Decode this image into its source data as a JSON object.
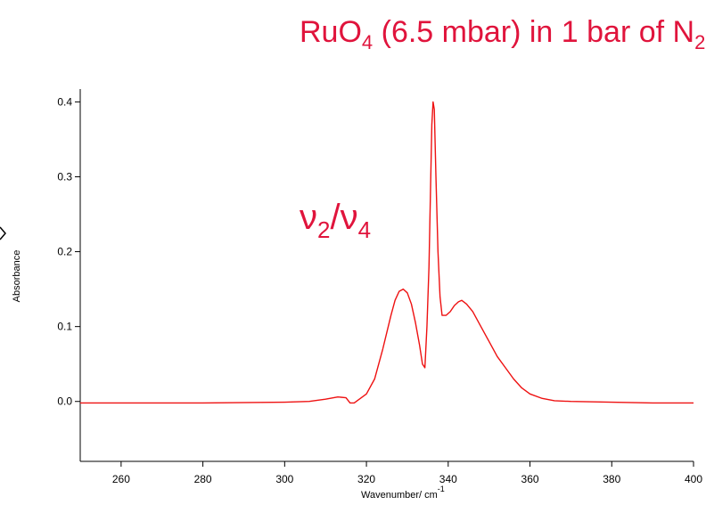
{
  "chart_data": {
    "type": "line",
    "title": {
      "base": "RuO",
      "sub1": "4",
      "mid": " (6.5 mbar) in 1 bar of N",
      "sub2": "2"
    },
    "annotation": {
      "nu1": "ν",
      "sub1": "2",
      "slash": "/ν",
      "sub2": "4"
    },
    "xlabel": "Wavenumber/ cm",
    "xlabel_sup": "-1",
    "ylabel": "Absorbance",
    "xlim": [
      250,
      400
    ],
    "ylim": [
      -0.08,
      0.41
    ],
    "xticks": [
      260,
      280,
      300,
      320,
      340,
      360,
      380,
      400
    ],
    "yticks": [
      0.0,
      0.1,
      0.2,
      0.3,
      0.4
    ],
    "ytick_labels": [
      "0.0",
      "0.1",
      "0.2",
      "0.3",
      "0.4"
    ],
    "grid": false,
    "colors": {
      "line": "#ee1111",
      "title": "#e0143c"
    },
    "series": [
      {
        "x": [
          250,
          260,
          280,
          300,
          306,
          310,
          313,
          315,
          316,
          317,
          320,
          322,
          324,
          326,
          327,
          328,
          329,
          330,
          331,
          332,
          333,
          333.7,
          334.3,
          334.8,
          335.3,
          335.7,
          336.0,
          336.3,
          336.6,
          337.0,
          337.5,
          338.0,
          338.5,
          339.5,
          340.5,
          341.5,
          342.5,
          343.3,
          344.5,
          346,
          348,
          350,
          352,
          354,
          356,
          358,
          360,
          363,
          366,
          370,
          380,
          390,
          400
        ],
        "y": [
          -0.002,
          -0.002,
          -0.002,
          -0.001,
          0.0,
          0.003,
          0.006,
          0.005,
          -0.002,
          -0.002,
          0.01,
          0.03,
          0.07,
          0.115,
          0.135,
          0.147,
          0.15,
          0.145,
          0.13,
          0.105,
          0.075,
          0.05,
          0.045,
          0.1,
          0.18,
          0.29,
          0.37,
          0.4,
          0.39,
          0.3,
          0.2,
          0.14,
          0.115,
          0.115,
          0.12,
          0.128,
          0.133,
          0.135,
          0.13,
          0.12,
          0.1,
          0.08,
          0.06,
          0.045,
          0.03,
          0.018,
          0.01,
          0.004,
          0.001,
          0.0,
          -0.001,
          -0.002,
          -0.002
        ]
      }
    ]
  }
}
